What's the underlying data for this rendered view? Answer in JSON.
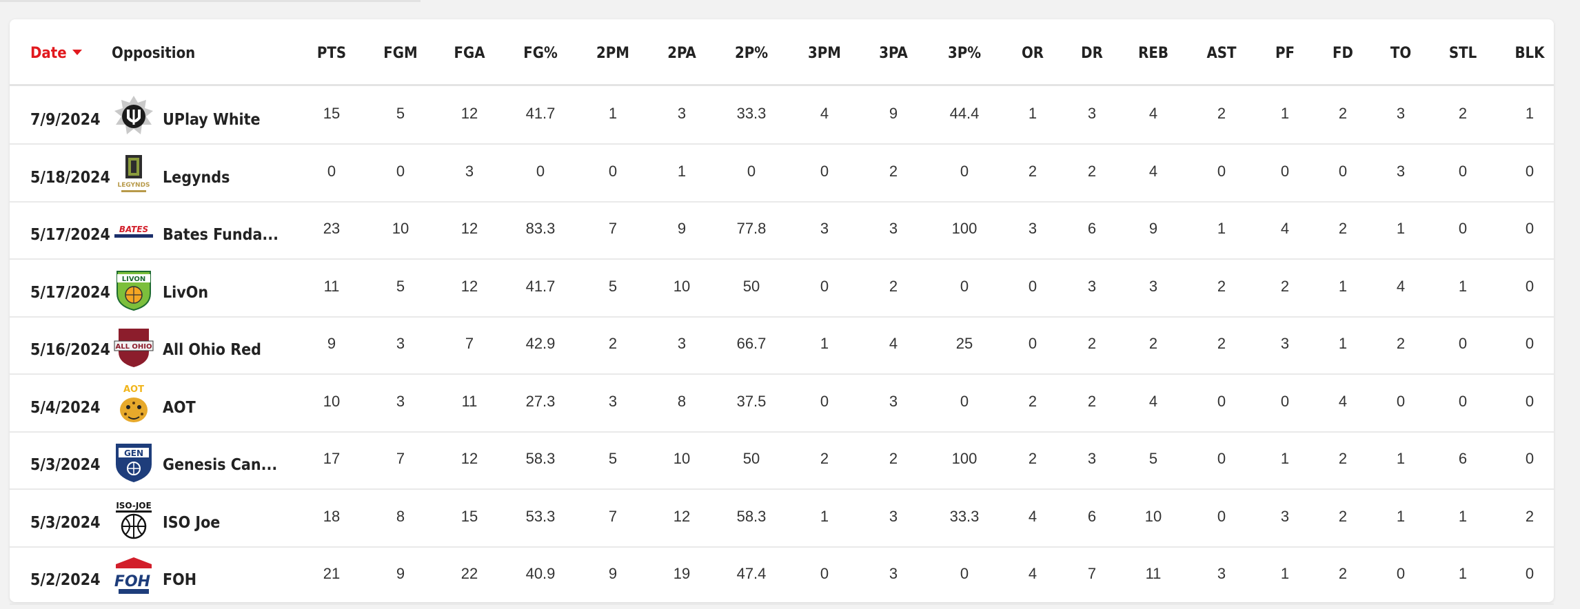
{
  "table": {
    "headers": {
      "date": "Date",
      "opposition": "Opposition",
      "stats": [
        "PTS",
        "FGM",
        "FGA",
        "FG%",
        "2PM",
        "2PA",
        "2P%",
        "3PM",
        "3PA",
        "3P%",
        "OR",
        "DR",
        "REB",
        "AST",
        "PF",
        "FD",
        "TO",
        "STL",
        "BLK"
      ]
    },
    "rows": [
      {
        "date": "7/9/2024",
        "team": "UPlay White",
        "logo": "uplay-logo",
        "stats": [
          "15",
          "5",
          "12",
          "41.7",
          "1",
          "3",
          "33.3",
          "4",
          "9",
          "44.4",
          "1",
          "3",
          "4",
          "2",
          "1",
          "2",
          "3",
          "2",
          "1"
        ]
      },
      {
        "date": "5/18/2024",
        "team": "Legynds",
        "logo": "legynds-logo",
        "logo_text": "LEGYNDS",
        "stats": [
          "0",
          "0",
          "3",
          "0",
          "0",
          "1",
          "0",
          "0",
          "2",
          "0",
          "2",
          "2",
          "4",
          "0",
          "0",
          "0",
          "3",
          "0",
          "0"
        ]
      },
      {
        "date": "5/17/2024",
        "team": "Bates Funda...",
        "logo": "bates-logo",
        "logo_text": "BATES",
        "stats": [
          "23",
          "10",
          "12",
          "83.3",
          "7",
          "9",
          "77.8",
          "3",
          "3",
          "100",
          "3",
          "6",
          "9",
          "1",
          "4",
          "2",
          "1",
          "0",
          "0"
        ]
      },
      {
        "date": "5/17/2024",
        "team": "LivOn",
        "logo": "livon-logo",
        "logo_text": "LIVON",
        "stats": [
          "11",
          "5",
          "12",
          "41.7",
          "5",
          "10",
          "50",
          "0",
          "2",
          "0",
          "0",
          "3",
          "3",
          "2",
          "2",
          "1",
          "4",
          "1",
          "0"
        ]
      },
      {
        "date": "5/16/2024",
        "team": "All Ohio Red",
        "logo": "all-ohio-logo",
        "logo_text": "ALL OHIO",
        "stats": [
          "9",
          "3",
          "7",
          "42.9",
          "2",
          "3",
          "66.7",
          "1",
          "4",
          "25",
          "0",
          "2",
          "2",
          "2",
          "3",
          "1",
          "2",
          "0",
          "0"
        ]
      },
      {
        "date": "5/4/2024",
        "team": "AOT",
        "logo": "aot-logo",
        "logo_text": "AOT",
        "stats": [
          "10",
          "3",
          "11",
          "27.3",
          "3",
          "8",
          "37.5",
          "0",
          "3",
          "0",
          "2",
          "2",
          "4",
          "0",
          "0",
          "4",
          "0",
          "0",
          "0"
        ]
      },
      {
        "date": "5/3/2024",
        "team": "Genesis Can...",
        "logo": "genesis-logo",
        "logo_text": "GEN",
        "stats": [
          "17",
          "7",
          "12",
          "58.3",
          "5",
          "10",
          "50",
          "2",
          "2",
          "100",
          "2",
          "3",
          "5",
          "0",
          "1",
          "2",
          "1",
          "6",
          "0"
        ]
      },
      {
        "date": "5/3/2024",
        "team": "ISO Joe",
        "logo": "iso-joe-logo",
        "logo_text": "ISO-JOE",
        "stats": [
          "18",
          "8",
          "15",
          "53.3",
          "7",
          "12",
          "58.3",
          "1",
          "3",
          "33.3",
          "4",
          "6",
          "10",
          "0",
          "3",
          "2",
          "1",
          "1",
          "2"
        ]
      },
      {
        "date": "5/2/2024",
        "team": "FOH",
        "logo": "foh-logo",
        "logo_text": "FOH",
        "stats": [
          "21",
          "9",
          "22",
          "40.9",
          "9",
          "19",
          "47.4",
          "0",
          "3",
          "0",
          "4",
          "7",
          "11",
          "3",
          "1",
          "2",
          "0",
          "1",
          "0"
        ]
      }
    ]
  },
  "colors": {
    "accent": "#e1191e",
    "text": "#222222",
    "border": "#e4e4e4"
  }
}
